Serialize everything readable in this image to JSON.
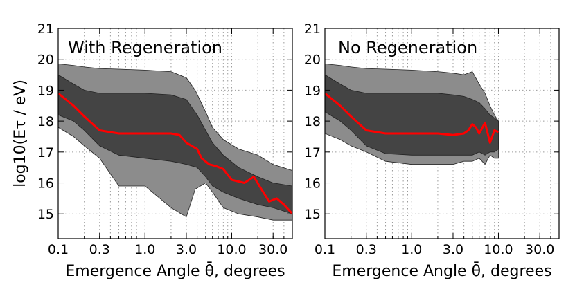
{
  "chart_data": [
    {
      "type": "area",
      "title": "With Regeneration",
      "xlabel": "Emergence Angle θ̄, degrees",
      "ylabel": "log10(Eτ / eV)",
      "xscale": "log",
      "xlim": [
        0.1,
        50
      ],
      "ylim": [
        14.2,
        21
      ],
      "xticks": [
        0.1,
        0.3,
        1.0,
        3.0,
        10.0,
        30.0
      ],
      "xtick_labels": [
        "0.1",
        "0.3",
        "1.0",
        "3.0",
        "10.0",
        "30.0"
      ],
      "yticks": [
        15,
        16,
        17,
        18,
        19,
        20,
        21
      ],
      "ytick_labels": [
        "15",
        "16",
        "17",
        "18",
        "19",
        "20",
        "21"
      ],
      "grid": true,
      "colors": {
        "outer_band": "#8c8c8c",
        "inner_band": "#444444",
        "median": "#ff0000"
      },
      "series": [
        {
          "name": "outer band",
          "x": [
            0.1,
            0.15,
            0.2,
            0.3,
            0.5,
            1.0,
            2.0,
            3.0,
            3.8,
            5.0,
            6.0,
            8.0,
            12.0,
            20.0,
            30.0,
            50.0
          ],
          "upper": [
            19.85,
            19.8,
            19.75,
            19.7,
            19.68,
            19.65,
            19.6,
            19.4,
            19.0,
            18.3,
            17.8,
            17.4,
            17.1,
            16.9,
            16.6,
            16.4
          ],
          "lower": [
            17.8,
            17.5,
            17.2,
            16.8,
            15.9,
            15.9,
            15.2,
            14.9,
            15.8,
            16.0,
            15.7,
            15.2,
            15.0,
            14.9,
            14.8,
            14.8
          ]
        },
        {
          "name": "inner band",
          "x": [
            0.1,
            0.15,
            0.2,
            0.3,
            0.5,
            1.0,
            2.0,
            3.0,
            4.0,
            5.0,
            6.0,
            8.0,
            12.0,
            20.0,
            30.0,
            50.0
          ],
          "upper": [
            19.5,
            19.2,
            19.0,
            18.9,
            18.9,
            18.9,
            18.85,
            18.7,
            18.2,
            17.7,
            17.3,
            16.9,
            16.5,
            16.2,
            16.0,
            15.9
          ],
          "lower": [
            18.2,
            18.0,
            17.7,
            17.2,
            16.9,
            16.8,
            16.7,
            16.6,
            16.5,
            16.2,
            15.9,
            15.7,
            15.5,
            15.3,
            15.2,
            15.0
          ]
        },
        {
          "name": "median",
          "x": [
            0.1,
            0.15,
            0.2,
            0.3,
            0.5,
            1.0,
            2.0,
            2.5,
            3.0,
            4.0,
            4.5,
            5.5,
            6.5,
            8.0,
            10.0,
            14.0,
            18.0,
            22.0,
            27.0,
            33.0,
            40.0,
            50.0
          ],
          "y": [
            18.9,
            18.5,
            18.15,
            17.7,
            17.6,
            17.6,
            17.6,
            17.55,
            17.3,
            17.1,
            16.8,
            16.6,
            16.55,
            16.45,
            16.1,
            16.0,
            16.2,
            15.8,
            15.4,
            15.5,
            15.3,
            15.0
          ]
        }
      ]
    },
    {
      "type": "area",
      "title": "No Regeneration",
      "xlabel": "Emergence Angle θ̄, degrees",
      "ylabel": "",
      "xscale": "log",
      "xlim": [
        0.1,
        50
      ],
      "ylim": [
        14.2,
        21
      ],
      "xticks": [
        0.1,
        0.3,
        1.0,
        3.0,
        10.0,
        30.0
      ],
      "xtick_labels": [
        "0.1",
        "0.3",
        "1.0",
        "3.0",
        "10.0",
        "30.0"
      ],
      "yticks": [
        15,
        16,
        17,
        18,
        19,
        20,
        21
      ],
      "ytick_labels": [
        "15",
        "16",
        "17",
        "18",
        "19",
        "20",
        "21"
      ],
      "grid": true,
      "colors": {
        "outer_band": "#8c8c8c",
        "inner_band": "#444444",
        "median": "#ff0000"
      },
      "series": [
        {
          "name": "outer band",
          "x": [
            0.1,
            0.15,
            0.2,
            0.3,
            0.5,
            1.0,
            2.0,
            3.0,
            4.0,
            5.0,
            6.0,
            7.0,
            8.0,
            9.0,
            10.0
          ],
          "upper": [
            19.85,
            19.8,
            19.75,
            19.7,
            19.68,
            19.65,
            19.6,
            19.55,
            19.5,
            19.6,
            19.2,
            18.9,
            18.5,
            18.2,
            18.0
          ],
          "lower": [
            17.6,
            17.4,
            17.2,
            17.0,
            16.7,
            16.6,
            16.6,
            16.6,
            16.7,
            16.7,
            16.8,
            16.6,
            16.9,
            16.8,
            16.8
          ]
        },
        {
          "name": "inner band",
          "x": [
            0.1,
            0.15,
            0.2,
            0.3,
            0.5,
            1.0,
            2.0,
            3.0,
            4.0,
            5.0,
            6.0,
            7.0,
            8.0,
            9.0,
            10.0
          ],
          "upper": [
            19.5,
            19.2,
            19.0,
            18.9,
            18.9,
            18.9,
            18.9,
            18.85,
            18.8,
            18.7,
            18.6,
            18.4,
            18.2,
            18.1,
            18.0
          ],
          "lower": [
            18.3,
            18.0,
            17.7,
            17.2,
            16.95,
            16.9,
            16.9,
            16.9,
            16.9,
            16.9,
            17.0,
            16.9,
            17.0,
            17.0,
            17.1
          ]
        },
        {
          "name": "median",
          "x": [
            0.1,
            0.15,
            0.2,
            0.3,
            0.5,
            1.0,
            2.0,
            3.0,
            4.0,
            4.5,
            5.0,
            5.5,
            6.0,
            7.0,
            8.0,
            9.0,
            10.0
          ],
          "y": [
            18.9,
            18.5,
            18.15,
            17.7,
            17.6,
            17.6,
            17.6,
            17.55,
            17.6,
            17.7,
            17.9,
            17.8,
            17.6,
            17.95,
            17.3,
            17.7,
            17.65
          ]
        }
      ]
    }
  ]
}
